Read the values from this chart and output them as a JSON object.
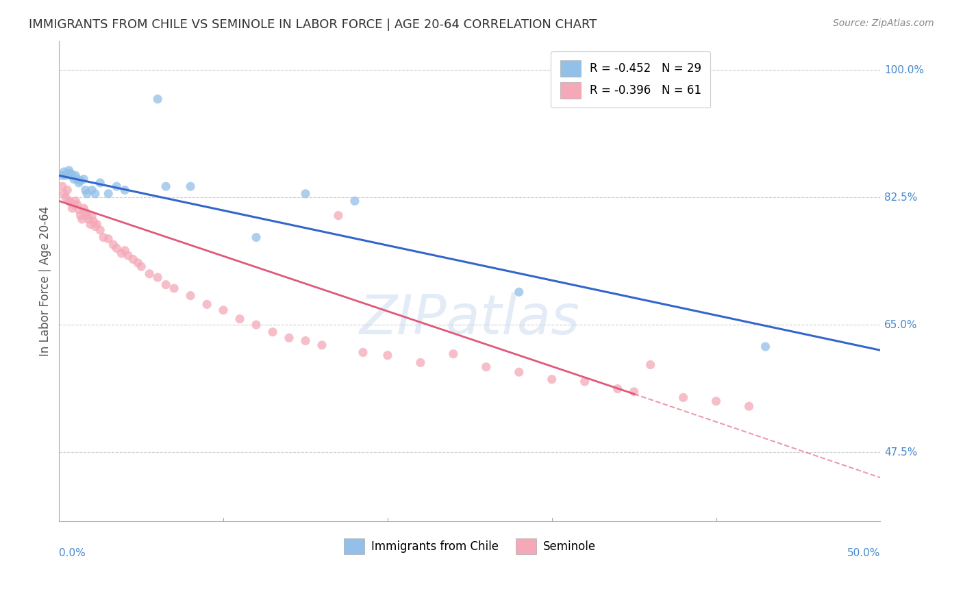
{
  "title": "IMMIGRANTS FROM CHILE VS SEMINOLE IN LABOR FORCE | AGE 20-64 CORRELATION CHART",
  "source": "Source: ZipAtlas.com",
  "ylabel": "In Labor Force | Age 20-64",
  "xlim": [
    0.0,
    0.5
  ],
  "ylim": [
    0.38,
    1.04
  ],
  "watermark": "ZIPatlas",
  "legend_chile": "R = -0.452   N = 29",
  "legend_seminole": "R = -0.396   N = 61",
  "chile_color": "#92c0e8",
  "seminole_color": "#f4a8b8",
  "chile_line_color": "#3366cc",
  "seminole_line_color": "#e05878",
  "grid_color": "#cccccc",
  "axis_label_color": "#4488cc",
  "title_color": "#333333",
  "source_color": "#888888",
  "ytick_labeled": [
    1.0,
    0.825,
    0.65,
    0.475
  ],
  "ytick_labeled_str": [
    "100.0%",
    "82.5%",
    "65.0%",
    "47.5%"
  ],
  "chile_line_x0": 0.0,
  "chile_line_y0": 0.855,
  "chile_line_x1": 0.5,
  "chile_line_y1": 0.615,
  "seminole_line_solid_x0": 0.0,
  "seminole_line_solid_y0": 0.82,
  "seminole_line_solid_x1": 0.35,
  "seminole_line_solid_y1": 0.555,
  "seminole_line_dash_x0": 0.35,
  "seminole_line_dash_y0": 0.555,
  "seminole_line_dash_x1": 0.5,
  "seminole_line_dash_y1": 0.44,
  "chile_pts_x": [
    0.002,
    0.003,
    0.004,
    0.005,
    0.006,
    0.007,
    0.008,
    0.009,
    0.01,
    0.011,
    0.012,
    0.013,
    0.015,
    0.016,
    0.017,
    0.02,
    0.022,
    0.025,
    0.03,
    0.035,
    0.04,
    0.06,
    0.065,
    0.08,
    0.12,
    0.15,
    0.18,
    0.28,
    0.43
  ],
  "chile_pts_y": [
    0.855,
    0.86,
    0.855,
    0.857,
    0.862,
    0.858,
    0.855,
    0.85,
    0.855,
    0.85,
    0.845,
    0.848,
    0.85,
    0.835,
    0.83,
    0.835,
    0.83,
    0.845,
    0.83,
    0.84,
    0.835,
    0.96,
    0.84,
    0.84,
    0.77,
    0.83,
    0.82,
    0.695,
    0.62
  ],
  "seminole_pts_x": [
    0.002,
    0.003,
    0.004,
    0.005,
    0.006,
    0.007,
    0.008,
    0.009,
    0.01,
    0.011,
    0.012,
    0.013,
    0.014,
    0.015,
    0.016,
    0.017,
    0.018,
    0.019,
    0.02,
    0.021,
    0.022,
    0.023,
    0.025,
    0.027,
    0.03,
    0.033,
    0.035,
    0.038,
    0.04,
    0.042,
    0.045,
    0.048,
    0.05,
    0.055,
    0.06,
    0.065,
    0.07,
    0.08,
    0.09,
    0.1,
    0.11,
    0.12,
    0.13,
    0.14,
    0.15,
    0.16,
    0.17,
    0.185,
    0.2,
    0.22,
    0.24,
    0.26,
    0.28,
    0.3,
    0.32,
    0.34,
    0.35,
    0.36,
    0.38,
    0.4,
    0.42
  ],
  "seminole_pts_y": [
    0.84,
    0.83,
    0.825,
    0.835,
    0.82,
    0.818,
    0.81,
    0.815,
    0.82,
    0.815,
    0.808,
    0.8,
    0.795,
    0.81,
    0.805,
    0.8,
    0.795,
    0.788,
    0.8,
    0.792,
    0.785,
    0.788,
    0.78,
    0.77,
    0.768,
    0.76,
    0.755,
    0.748,
    0.752,
    0.745,
    0.74,
    0.735,
    0.73,
    0.72,
    0.715,
    0.705,
    0.7,
    0.69,
    0.678,
    0.67,
    0.658,
    0.65,
    0.64,
    0.632,
    0.628,
    0.622,
    0.8,
    0.612,
    0.608,
    0.598,
    0.61,
    0.592,
    0.585,
    0.575,
    0.572,
    0.562,
    0.558,
    0.595,
    0.55,
    0.545,
    0.538
  ]
}
